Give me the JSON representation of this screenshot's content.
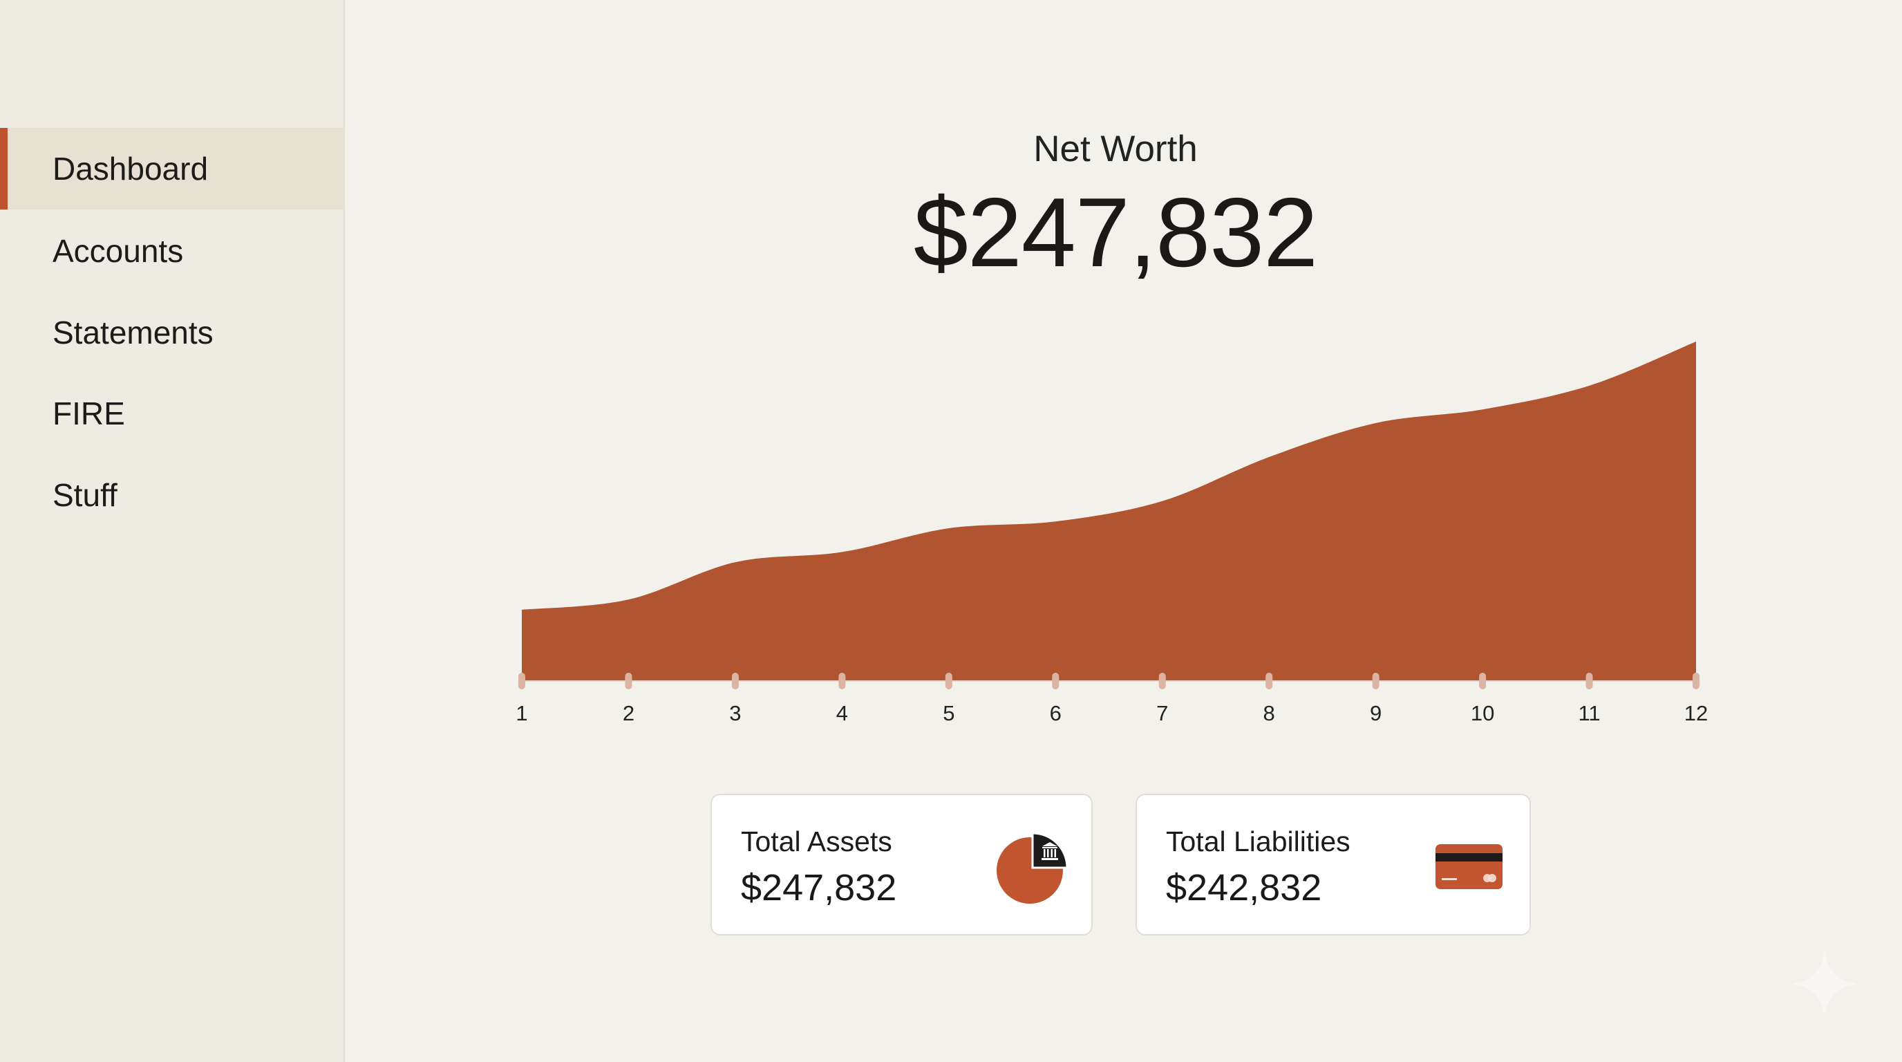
{
  "sidebar": {
    "items": [
      {
        "label": "Dashboard",
        "active": true
      },
      {
        "label": "Accounts",
        "active": false
      },
      {
        "label": "Statements",
        "active": false
      },
      {
        "label": "FIRE",
        "active": false
      },
      {
        "label": "Stuff",
        "active": false
      }
    ]
  },
  "header": {
    "label": "Net Worth",
    "value": "$247,832"
  },
  "colors": {
    "accent": "#c0532d",
    "area_fill": "#b0552f",
    "tick_marker": "#dcb4a4",
    "background": "#f2f1ec",
    "sidebar": "#eeebe2"
  },
  "chart_data": {
    "type": "area",
    "title": "Net Worth",
    "x": [
      "1",
      "2",
      "3",
      "4",
      "5",
      "6",
      "7",
      "8",
      "9",
      "10",
      "11",
      "12"
    ],
    "values": [
      21,
      24,
      35,
      38,
      45,
      47,
      53,
      66,
      76,
      80,
      87,
      100
    ],
    "value_units": "relative height (% of max), no y-axis shown",
    "xlabel": "",
    "ylabel": "",
    "grid": false,
    "legend": null
  },
  "cards": [
    {
      "label": "Total Assets",
      "value": "$247,832",
      "icon": "bank-pie-icon"
    },
    {
      "label": "Total Liabilities",
      "value": "$242,832",
      "icon": "credit-card-icon"
    }
  ]
}
